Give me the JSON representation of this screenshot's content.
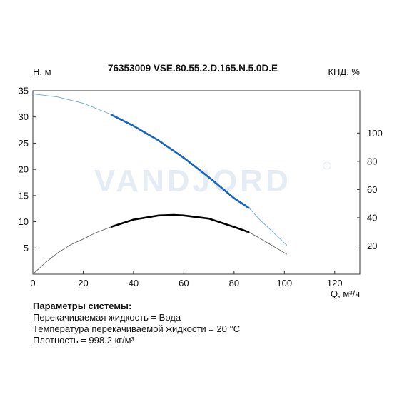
{
  "chart_data": {
    "type": "line",
    "title": "76353009 VSE.80.55.2.D.165.N.5.0D.E",
    "xlabel": "Q, м³/ч",
    "ylabel_left": "Н, м",
    "ylabel_right": "КПД, %",
    "watermark": "VANDJORD",
    "xlim": [
      0,
      130
    ],
    "ylim_left": [
      0,
      35
    ],
    "ylim_right": [
      0,
      130
    ],
    "x_ticks": [
      0,
      20,
      40,
      60,
      80,
      100,
      120
    ],
    "y_left_ticks": [
      5,
      10,
      15,
      20,
      25,
      30,
      35
    ],
    "y_right_ticks": [
      20,
      40,
      60,
      80,
      100
    ],
    "grid": false,
    "series": [
      {
        "name": "",
        "axis": "left",
        "color": "#1565c0",
        "full_curve": [
          [
            0,
            34.4
          ],
          [
            10,
            33.8
          ],
          [
            20,
            32.6
          ],
          [
            30,
            30.7
          ],
          [
            40,
            28.3
          ],
          [
            50,
            25.5
          ],
          [
            60,
            22.2
          ],
          [
            70,
            18.5
          ],
          [
            80,
            14.5
          ],
          [
            86,
            12.6
          ],
          [
            90,
            10.5
          ],
          [
            101,
            5.5
          ]
        ],
        "operating_range": [
          31,
          86
        ]
      },
      {
        "name": "",
        "axis": "left",
        "color": "#000000",
        "full_curve": [
          [
            0,
            0
          ],
          [
            5,
            2.2
          ],
          [
            10,
            4.1
          ],
          [
            15,
            5.6
          ],
          [
            20,
            6.7
          ],
          [
            25,
            7.9
          ],
          [
            31,
            9.0
          ],
          [
            40,
            10.4
          ],
          [
            50,
            11.2
          ],
          [
            56,
            11.3
          ],
          [
            60,
            11.2
          ],
          [
            70,
            10.6
          ],
          [
            80,
            9.0
          ],
          [
            86,
            8.0
          ],
          [
            90,
            6.9
          ],
          [
            101,
            3.8
          ]
        ],
        "operating_range": [
          31,
          86
        ]
      }
    ]
  },
  "params": {
    "title": "Параметры системы:",
    "lines": [
      "Перекачиваемая жидкость = Вода",
      "Температура перекачиваемой жидкости = 20 °C",
      "Плотность = 998.2 кг/м³"
    ]
  }
}
